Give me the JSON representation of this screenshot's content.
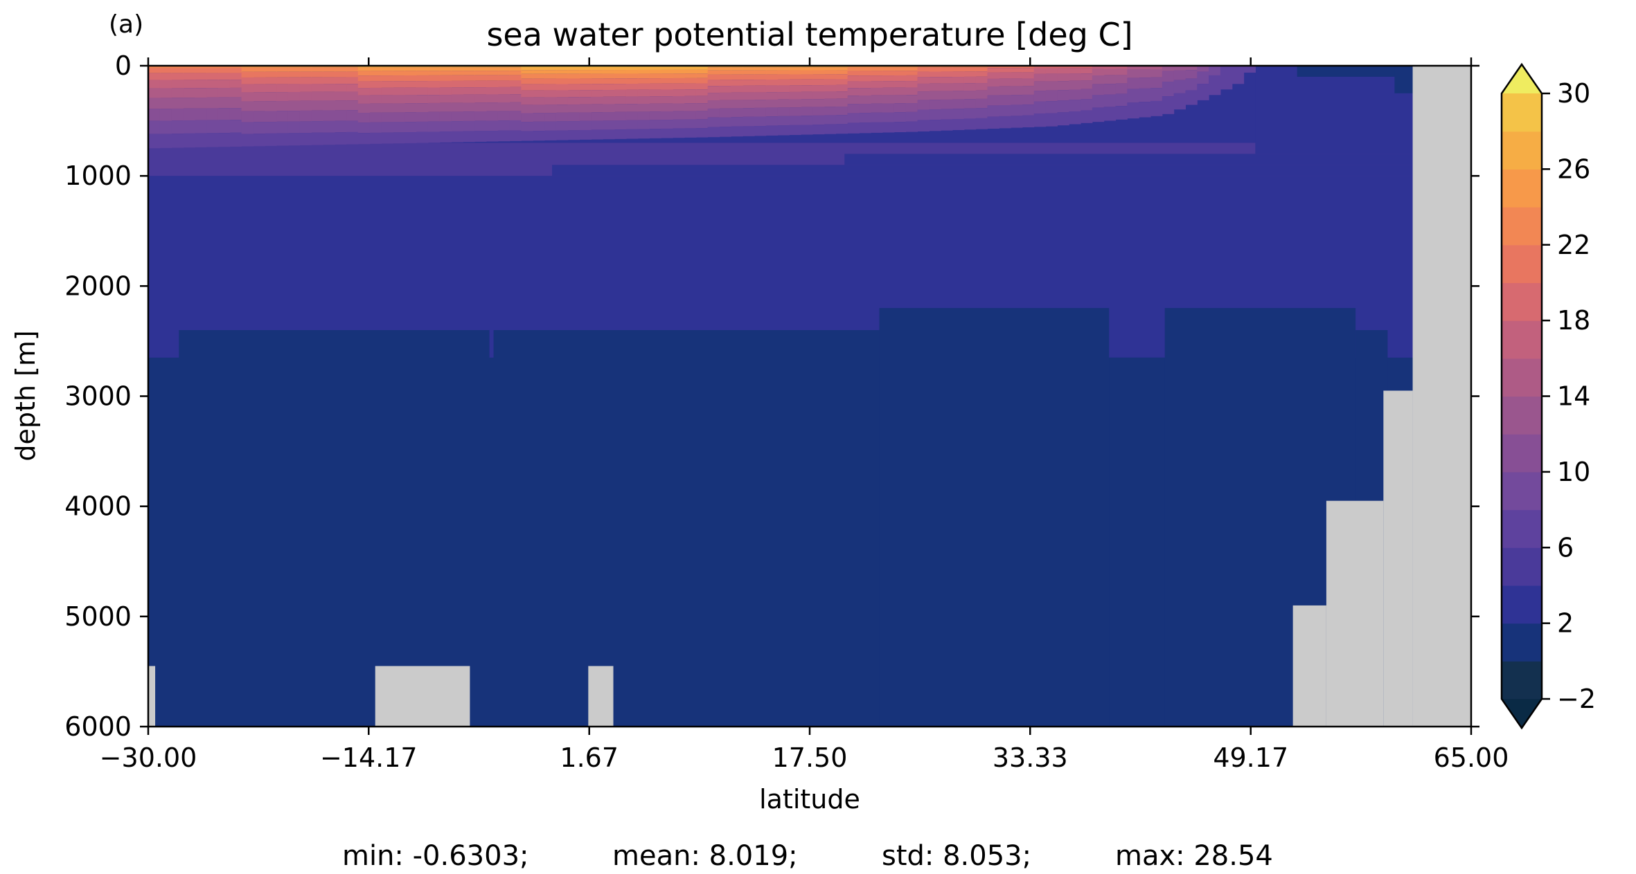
{
  "panel_label": "(a)",
  "title": "sea water potential temperature [deg C]",
  "stats": {
    "min": "min: -0.6303;",
    "mean": "mean: 8.019;",
    "std": "std: 8.053;",
    "max": "max: 28.54"
  },
  "colors": {
    "land": "#cbcbcb",
    "ramp": [
      "#0a2a45",
      "#13304f",
      "#17337a",
      "#2f3395",
      "#4a3a9a",
      "#5e429e",
      "#734a9c",
      "#874f95",
      "#9a568e",
      "#ae5b86",
      "#c2617d",
      "#d76a70",
      "#e87660",
      "#f28754",
      "#f7994a",
      "#f6ad45",
      "#f4c348",
      "#f1da4d",
      "#efec60"
    ]
  },
  "chart_data": {
    "type": "heatmap",
    "title": "sea water potential temperature [deg C]",
    "xlabel": "latitude",
    "ylabel": "depth [m]",
    "xlim": [
      -30,
      65
    ],
    "ylim": [
      6000,
      0
    ],
    "x_ticks": [
      "−30.00",
      "−14.17",
      "1.67",
      "17.50",
      "33.33",
      "49.17",
      "65.00"
    ],
    "x_tick_values": [
      -30,
      -14.17,
      1.67,
      17.5,
      33.33,
      49.17,
      65
    ],
    "y_ticks": [
      "0",
      "1000",
      "2000",
      "3000",
      "4000",
      "5000",
      "6000"
    ],
    "y_tick_values": [
      0,
      1000,
      2000,
      3000,
      4000,
      5000,
      6000
    ],
    "colorbar": {
      "min": -2,
      "max": 30,
      "step": 2,
      "extend": "both",
      "ticks": [
        "−2",
        "2",
        "6",
        "10",
        "14",
        "18",
        "22",
        "26",
        "30"
      ],
      "tick_values": [
        -2,
        2,
        6,
        10,
        14,
        18,
        22,
        26,
        30
      ]
    },
    "deep_regions": [
      {
        "x": [
          -30,
          65
        ],
        "depth": [
          0,
          6000
        ],
        "value": 1
      },
      {
        "x": [
          -30,
          65
        ],
        "depth": [
          0,
          2650
        ],
        "value": 3
      },
      {
        "x": [
          -27.8,
          22.5
        ],
        "depth": [
          2400,
          6000
        ],
        "value": 1
      },
      {
        "x": [
          -5.5,
          -5.2
        ],
        "depth": [
          2400,
          2650
        ],
        "value": 3
      },
      {
        "x": [
          22.5,
          39
        ],
        "depth": [
          2200,
          6000
        ],
        "value": 1
      },
      {
        "x": [
          39,
          43
        ],
        "depth": [
          2650,
          6000
        ],
        "value": 1
      },
      {
        "x": [
          43,
          56.7
        ],
        "depth": [
          2200,
          6000
        ],
        "value": 1
      },
      {
        "x": [
          56.7,
          59
        ],
        "depth": [
          2400,
          6000
        ],
        "value": 1
      },
      {
        "x": [
          -30,
          65
        ],
        "depth": [
          700,
          1000
        ],
        "value": 5
      },
      {
        "x": [
          -1,
          65
        ],
        "depth": [
          900,
          1000
        ],
        "value": 3
      },
      {
        "x": [
          20,
          65
        ],
        "depth": [
          800,
          900
        ],
        "value": 3
      },
      {
        "x": [
          49.5,
          65
        ],
        "depth": [
          0,
          800
        ],
        "value": 3
      },
      {
        "x": [
          52.5,
          62.8
        ],
        "depth": [
          0,
          100
        ],
        "value": 1
      },
      {
        "x": [
          59.5,
          62
        ],
        "depth": [
          0,
          250
        ],
        "value": 1
      }
    ],
    "surface_profile": [
      {
        "lat": -30,
        "depth": 750
      },
      {
        "lat": -10,
        "depth": 700
      },
      {
        "lat": 10,
        "depth": 650
      },
      {
        "lat": 25,
        "depth": 600
      },
      {
        "lat": 35,
        "depth": 550
      },
      {
        "lat": 43,
        "depth": 450
      },
      {
        "lat": 46,
        "depth": 300
      },
      {
        "lat": 48.5,
        "depth": 150
      },
      {
        "lat": 49.5,
        "depth": 0
      }
    ],
    "surface_temperature": [
      {
        "lat": -30,
        "value": 22
      },
      {
        "lat": -20,
        "value": 25
      },
      {
        "lat": -10,
        "value": 27
      },
      {
        "lat": 0,
        "value": 28.5
      },
      {
        "lat": 10,
        "value": 28
      },
      {
        "lat": 20,
        "value": 26
      },
      {
        "lat": 30,
        "value": 22
      },
      {
        "lat": 38,
        "value": 18
      },
      {
        "lat": 45,
        "value": 12
      },
      {
        "lat": 49.5,
        "value": 4
      }
    ],
    "land_regions": [
      {
        "x": [
          -30,
          -29.5
        ],
        "depth": [
          5450,
          6000
        ]
      },
      {
        "x": [
          -13.7,
          -6.9
        ],
        "depth": [
          5450,
          6000
        ]
      },
      {
        "x": [
          1.6,
          3.4
        ],
        "depth": [
          5450,
          6000
        ]
      },
      {
        "x": [
          52.2,
          54.6
        ],
        "depth": [
          4900,
          6000
        ]
      },
      {
        "x": [
          54.6,
          58.7
        ],
        "depth": [
          3950,
          6000
        ]
      },
      {
        "x": [
          58.7,
          60.8
        ],
        "depth": [
          2950,
          6000
        ]
      },
      {
        "x": [
          60.8,
          65
        ],
        "depth": [
          0,
          6000
        ]
      }
    ]
  }
}
